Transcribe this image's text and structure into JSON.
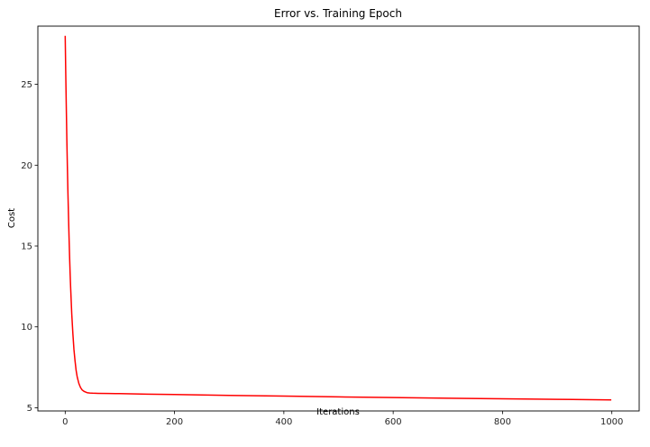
{
  "chart_data": {
    "type": "line",
    "title": "Error vs. Training Epoch",
    "xlabel": "Iterations",
    "ylabel": "Cost",
    "xlim": [
      -50,
      1050
    ],
    "ylim": [
      4.8,
      28.6
    ],
    "x_ticks": [
      0,
      200,
      400,
      600,
      800,
      1000
    ],
    "y_ticks": [
      5,
      10,
      15,
      20,
      25
    ],
    "grid": false,
    "legend": "none",
    "series": [
      {
        "color": "#ff0000",
        "x": [
          0,
          1,
          2,
          3,
          4,
          5,
          6,
          7,
          8,
          9,
          10,
          12,
          14,
          16,
          18,
          20,
          22,
          25,
          28,
          31,
          35,
          40,
          45,
          50,
          60,
          80,
          100,
          150,
          200,
          300,
          400,
          500,
          600,
          700,
          800,
          900,
          999
        ],
        "y": [
          28.0,
          25.7,
          23.6,
          21.6,
          19.9,
          18.3,
          16.9,
          15.6,
          14.4,
          13.3,
          12.4,
          10.8,
          9.6,
          8.6,
          7.9,
          7.3,
          6.9,
          6.5,
          6.25,
          6.1,
          6.0,
          5.93,
          5.91,
          5.9,
          5.89,
          5.88,
          5.87,
          5.84,
          5.82,
          5.76,
          5.72,
          5.67,
          5.63,
          5.59,
          5.55,
          5.52,
          5.48
        ]
      }
    ]
  }
}
